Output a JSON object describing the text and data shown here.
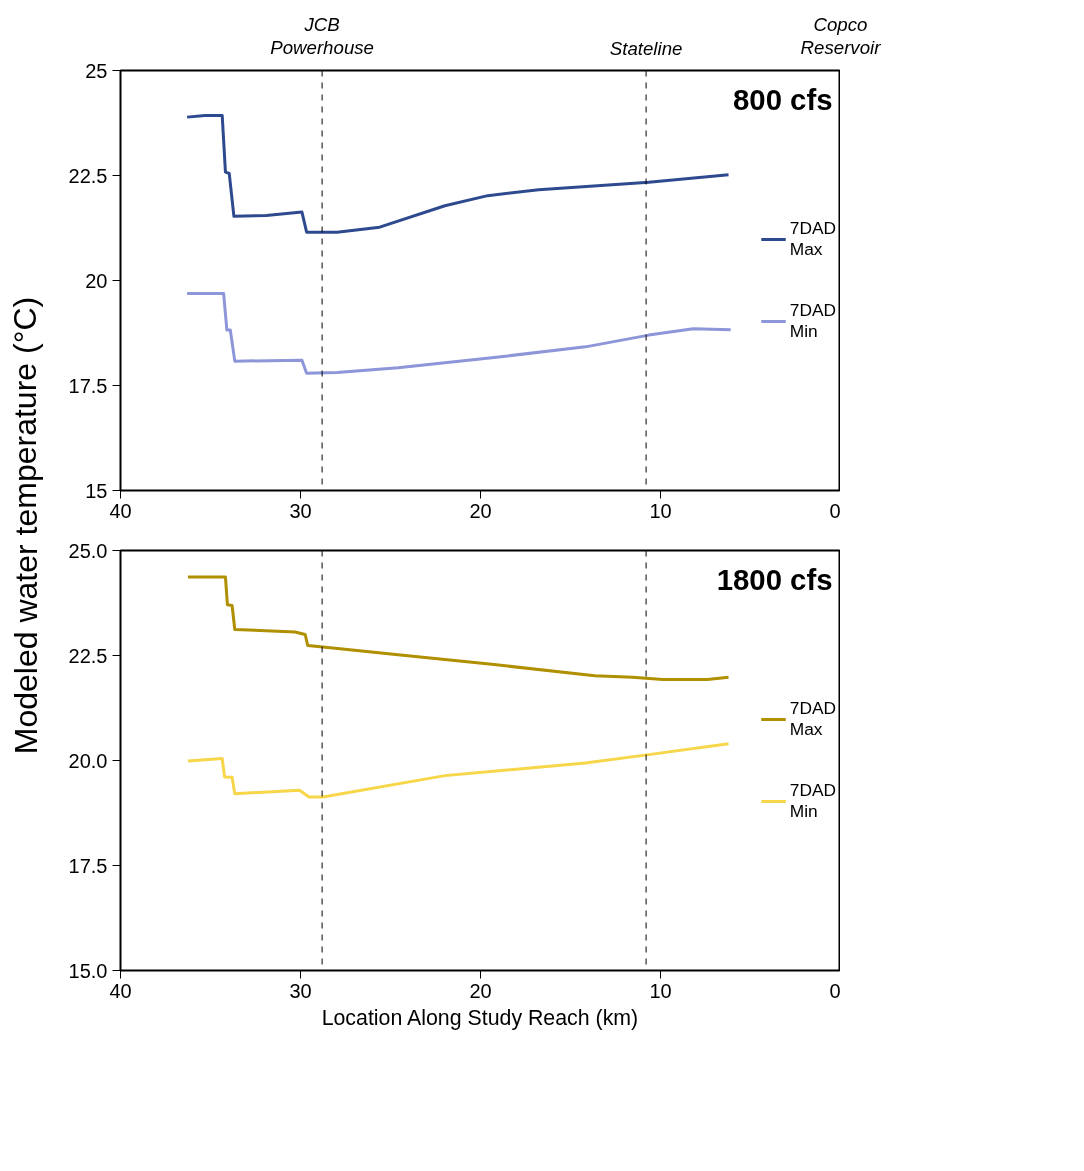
{
  "chart_data": [
    {
      "type": "line",
      "title": "800 cfs",
      "ylabel": "Modeled water temperature (°C)",
      "xlim": [
        40,
        0
      ],
      "xticks": [
        40,
        30,
        20,
        10,
        0
      ],
      "ylim": [
        15,
        25
      ],
      "yticks": [
        15,
        17.5,
        20,
        22.5,
        25
      ],
      "grid": false,
      "legend": "right",
      "line_style": "solid",
      "ref_lines": [
        {
          "axis": "x",
          "value": 28.8,
          "label": "JCB Powerhouse",
          "color": "#000000",
          "line_style": "dashed"
        },
        {
          "axis": "x",
          "value": 10.8,
          "label": "Stateline",
          "color": "#000000",
          "line_style": "dashed"
        }
      ],
      "annotations": [
        "Copco Reservoir"
      ],
      "series": [
        {
          "name": "7DAD Max",
          "color": "#2e4a8f",
          "x": [
            36.3,
            35.3,
            34.35,
            34.17,
            33.96,
            33.7,
            31.9,
            29.92,
            29.66,
            27.97,
            25.6,
            21.98,
            19.6,
            16.77,
            10.65,
            6.22
          ],
          "values": [
            23.89,
            23.93,
            23.93,
            22.58,
            22.55,
            21.53,
            21.55,
            21.63,
            21.15,
            21.15,
            21.27,
            21.78,
            22.02,
            22.16,
            22.34,
            22.52
          ]
        },
        {
          "name": "7DAD Min",
          "color": "#8c96d8",
          "x": [
            36.3,
            34.27,
            34.09,
            33.9,
            33.65,
            29.92,
            29.66,
            27.97,
            24.58,
            19.38,
            14.17,
            10.65,
            8.18,
            6.1
          ],
          "values": [
            19.69,
            19.69,
            18.82,
            18.82,
            18.08,
            18.1,
            17.79,
            17.81,
            17.92,
            18.16,
            18.42,
            18.7,
            18.85,
            18.83
          ]
        }
      ]
    },
    {
      "type": "line",
      "title": "1800 cfs",
      "xlabel": "Location Along Study Reach (km)",
      "xlim": [
        40,
        0
      ],
      "xticks": [
        40,
        30,
        20,
        10,
        0
      ],
      "ylim": [
        15,
        25
      ],
      "yticks": [
        {
          "value": 15,
          "label": "15.0"
        },
        {
          "value": 17.5,
          "label": "17.5"
        },
        {
          "value": 20,
          "label": "20.0"
        },
        {
          "value": 22.5,
          "label": "22.5"
        },
        {
          "value": 25,
          "label": "25.0"
        }
      ],
      "grid": false,
      "legend": "right",
      "line_style": "solid",
      "ref_lines": [
        {
          "axis": "x",
          "value": 28.8,
          "color": "#000000",
          "line_style": "dashed"
        },
        {
          "axis": "x",
          "value": 10.8,
          "color": "#000000",
          "line_style": "dashed"
        }
      ],
      "series": [
        {
          "name": "7DAD Max",
          "color": "#b08f00",
          "x": [
            36.25,
            34.17,
            34.06,
            33.8,
            33.65,
            30.3,
            29.74,
            29.6,
            28.75,
            24.58,
            19.38,
            13.65,
            11.56,
            9.87,
            7.4,
            6.22
          ],
          "values": [
            24.37,
            24.37,
            23.71,
            23.69,
            23.12,
            23.06,
            23.0,
            22.74,
            22.7,
            22.52,
            22.29,
            22.02,
            21.98,
            21.93,
            21.93,
            21.98
          ]
        },
        {
          "name": "7DAD Min",
          "color": "#f7d64a",
          "x": [
            36.25,
            34.35,
            34.22,
            33.8,
            33.65,
            30.05,
            29.53,
            28.75,
            21.98,
            14.17,
            10.65,
            6.22
          ],
          "values": [
            19.99,
            20.05,
            19.61,
            19.6,
            19.21,
            19.29,
            19.13,
            19.13,
            19.64,
            19.94,
            20.14,
            20.4
          ]
        }
      ]
    }
  ]
}
